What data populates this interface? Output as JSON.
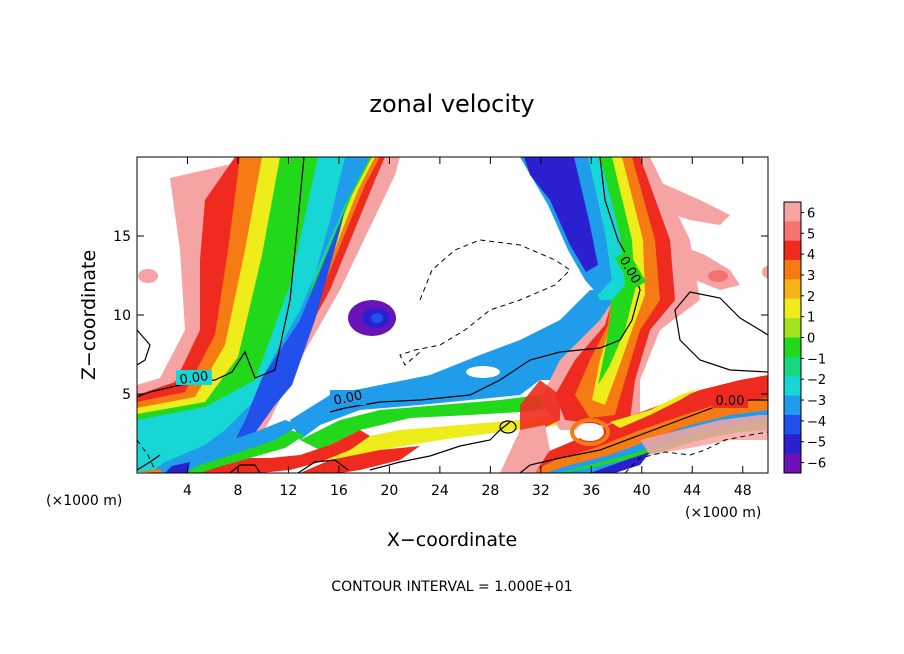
{
  "chart_data": {
    "type": "heatmap",
    "title": "zonal velocity",
    "xlabel": "X−coordinate",
    "ylabel": "Z−coordinate",
    "x_unit_label": "(×1000 m)",
    "y_unit_label": "(×1000 m)",
    "footer": "CONTOUR INTERVAL = 1.000E+01",
    "xlim": [
      0,
      50
    ],
    "ylim": [
      0,
      20
    ],
    "x_ticks": [
      4,
      8,
      12,
      16,
      20,
      24,
      28,
      32,
      36,
      40,
      44,
      48
    ],
    "y_ticks": [
      5,
      10,
      15
    ],
    "x_tick_labels": [
      "4",
      "8",
      "12",
      "16",
      "20",
      "24",
      "28",
      "32",
      "36",
      "40",
      "44",
      "48"
    ],
    "y_tick_labels": [
      "5",
      "10",
      "15"
    ],
    "colorbar": {
      "levels": [
        6,
        5,
        4,
        3,
        2,
        1,
        0,
        -1,
        -2,
        -3,
        -4,
        -5,
        -6
      ],
      "labels": [
        "6",
        "5",
        "4",
        "3",
        "2",
        "1",
        "0",
        "−1",
        "−2",
        "−3",
        "−4",
        "−5",
        "−6"
      ],
      "colors": [
        "#f6a3a3",
        "#f37272",
        "#ef2b1f",
        "#f57b12",
        "#f7b41a",
        "#efec1c",
        "#a5e21e",
        "#22d81b",
        "#16d880",
        "#17d7d6",
        "#1f9dea",
        "#2150ed",
        "#2a20d0",
        "#6a13b8"
      ]
    },
    "contour_labels": [
      "0.00",
      "0.00",
      "0.00",
      "0.00"
    ],
    "grid": false,
    "legend": "right (colorbar)"
  }
}
